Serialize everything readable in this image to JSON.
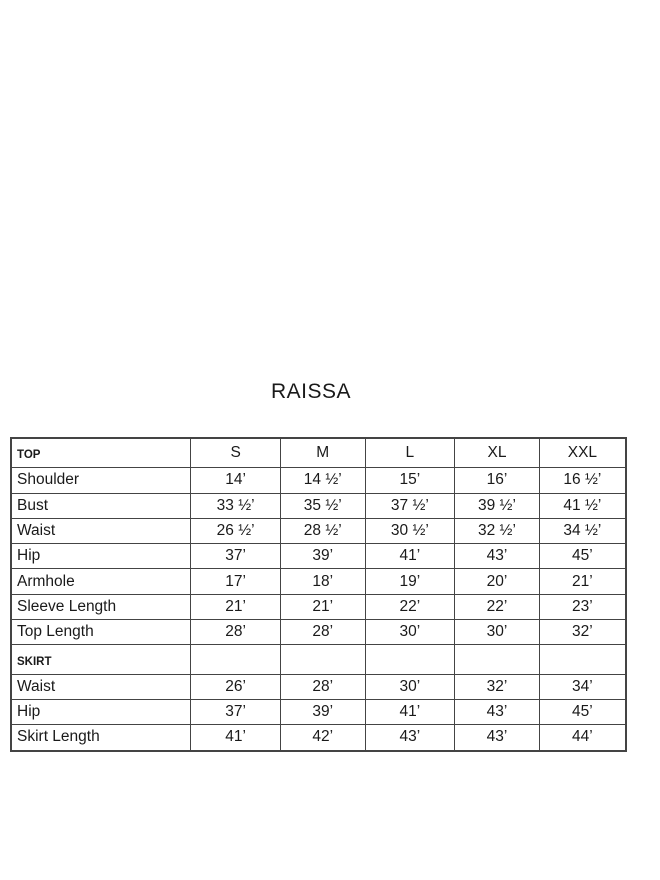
{
  "title": "RAISSA",
  "sizes": [
    "S",
    "M",
    "L",
    "XL",
    "XXL"
  ],
  "sections": [
    {
      "label": "TOP",
      "rows": [
        {
          "label": "Shoulder",
          "values": [
            "14’",
            "14 ½’",
            "15’",
            "16’",
            "16 ½’"
          ]
        },
        {
          "label": "Bust",
          "values": [
            "33 ½’",
            "35 ½’",
            "37 ½’",
            "39 ½’",
            "41 ½’"
          ]
        },
        {
          "label": "Waist",
          "values": [
            "26 ½’",
            "28 ½’",
            "30 ½’",
            "32 ½’",
            "34 ½’"
          ]
        },
        {
          "label": "Hip",
          "values": [
            "37’",
            "39’",
            "41’",
            "43’",
            "45’"
          ]
        },
        {
          "label": "Armhole",
          "values": [
            "17’",
            "18’",
            "19’",
            "20’",
            "21’"
          ]
        },
        {
          "label": "Sleeve Length",
          "values": [
            "21’",
            "21’",
            "22’",
            "22’",
            "23’"
          ]
        },
        {
          "label": "Top Length",
          "values": [
            "28’",
            "28’",
            "30’",
            "30’",
            "32’"
          ]
        }
      ]
    },
    {
      "label": "SKIRT",
      "rows": [
        {
          "label": "Waist",
          "values": [
            "26’",
            "28’",
            "30’",
            "32’",
            "34’"
          ]
        },
        {
          "label": "Hip",
          "values": [
            "37’",
            "39’",
            "41’",
            "43’",
            "45’"
          ]
        },
        {
          "label": "Skirt Length",
          "values": [
            "41’",
            "42’",
            "43’",
            "43’",
            "44’"
          ]
        }
      ]
    }
  ]
}
